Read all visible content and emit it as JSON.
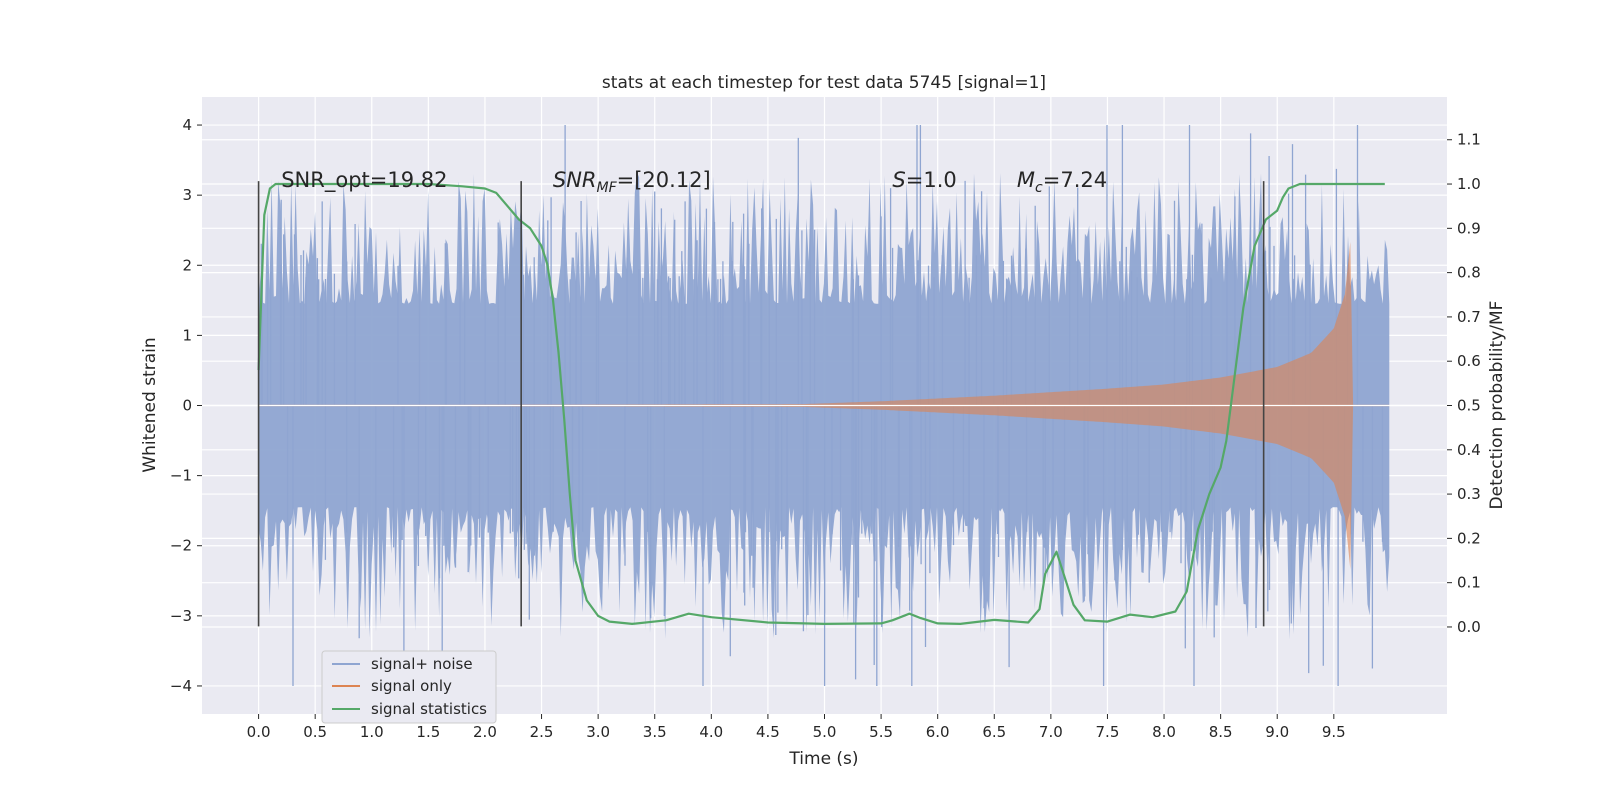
{
  "chart_data": {
    "type": "line",
    "title": "stats at each timestep for test data 5745 [signal=1]",
    "xlabel": "Time (s)",
    "ylabel_left": "Whitened strain",
    "ylabel_right": "Detection probability/MF",
    "xlim": [
      -0.5,
      10.5
    ],
    "ylim_left": [
      -4.4,
      4.4
    ],
    "ylim_right": [
      -0.1965,
      1.1965
    ],
    "x_ticks": [
      0.0,
      0.5,
      1.0,
      1.5,
      2.0,
      2.5,
      3.0,
      3.5,
      4.0,
      4.5,
      5.0,
      5.5,
      6.0,
      6.5,
      7.0,
      7.5,
      8.0,
      8.5,
      9.0,
      9.5
    ],
    "x_tick_labels": [
      "0.0",
      "0.5",
      "1.0",
      "1.5",
      "2.0",
      "2.5",
      "3.0",
      "3.5",
      "4.0",
      "4.5",
      "5.0",
      "5.5",
      "6.0",
      "6.5",
      "7.0",
      "7.5",
      "8.0",
      "8.5",
      "9.0",
      "9.5"
    ],
    "y_left_ticks": [
      4,
      3,
      2,
      1,
      0,
      -1,
      -2,
      -3,
      -4
    ],
    "y_left_tick_labels": [
      "4",
      "3",
      "2",
      "1",
      "0",
      "−1",
      "−2",
      "−3",
      "−4"
    ],
    "y_right_ticks": [
      1.1,
      1.0,
      0.9,
      0.8,
      0.7,
      0.6,
      0.5,
      0.4,
      0.3,
      0.2,
      0.1,
      0.0
    ],
    "y_right_tick_labels": [
      "1.1",
      "1.0",
      "0.9",
      "0.8",
      "0.7",
      "0.6",
      "0.5",
      "0.4",
      "0.3",
      "0.2",
      "0.1",
      "0.0"
    ],
    "grid": true,
    "legend_position": "lower-left",
    "series": [
      {
        "name": "signal+ noise",
        "color": "#8fa5d1",
        "axis": "left",
        "noise_band": {
          "x_start": 0.0,
          "x_end": 9.99,
          "core_amplitude": 1.3,
          "peak_max": 4.0,
          "peak_min": -4.0
        }
      },
      {
        "name": "signal only",
        "color": "#dd8452",
        "axis": "left",
        "envelope": {
          "x": [
            0.0,
            4.8,
            5.5,
            6.0,
            6.5,
            7.0,
            7.5,
            8.0,
            8.5,
            9.0,
            9.3,
            9.5,
            9.6,
            9.65,
            9.67
          ],
          "amplitude": [
            0.0,
            0.02,
            0.06,
            0.1,
            0.14,
            0.19,
            0.24,
            0.3,
            0.4,
            0.55,
            0.75,
            1.1,
            1.6,
            2.4,
            0.0
          ]
        }
      },
      {
        "name": "signal statistics",
        "color": "#55a868",
        "axis": "right",
        "x": [
          0.0,
          0.05,
          0.1,
          0.15,
          0.2,
          0.3,
          0.5,
          1.0,
          1.5,
          1.8,
          2.0,
          2.1,
          2.2,
          2.3,
          2.4,
          2.5,
          2.55,
          2.6,
          2.65,
          2.7,
          2.75,
          2.8,
          2.9,
          3.0,
          3.1,
          3.3,
          3.6,
          3.8,
          4.0,
          4.5,
          5.0,
          5.5,
          5.6,
          5.75,
          5.85,
          6.0,
          6.2,
          6.5,
          6.8,
          6.9,
          6.95,
          7.05,
          7.1,
          7.2,
          7.3,
          7.5,
          7.7,
          7.9,
          8.1,
          8.2,
          8.3,
          8.4,
          8.5,
          8.55,
          8.6,
          8.7,
          8.8,
          8.9,
          9.0,
          9.05,
          9.1,
          9.2,
          9.4,
          9.6,
          9.95
        ],
        "y": [
          0.58,
          0.93,
          0.99,
          1.0,
          1.0,
          1.0,
          1.0,
          1.0,
          1.0,
          0.995,
          0.99,
          0.98,
          0.95,
          0.92,
          0.9,
          0.86,
          0.82,
          0.74,
          0.62,
          0.47,
          0.3,
          0.15,
          0.06,
          0.025,
          0.012,
          0.007,
          0.015,
          0.03,
          0.022,
          0.01,
          0.007,
          0.008,
          0.015,
          0.03,
          0.02,
          0.008,
          0.007,
          0.016,
          0.01,
          0.04,
          0.12,
          0.17,
          0.13,
          0.05,
          0.015,
          0.012,
          0.028,
          0.022,
          0.035,
          0.08,
          0.22,
          0.3,
          0.36,
          0.42,
          0.52,
          0.72,
          0.86,
          0.92,
          0.94,
          0.97,
          0.99,
          1.0,
          1.0,
          1.0,
          1.0
        ]
      }
    ],
    "vertical_markers": [
      {
        "x": 0.0,
        "y_left_range": [
          -3.15,
          3.2
        ]
      },
      {
        "x": 2.32,
        "y_left_range": [
          -3.15,
          3.2
        ]
      },
      {
        "x": 8.88,
        "y_left_range": [
          -3.15,
          3.2
        ]
      }
    ],
    "annotations": [
      {
        "id": "snr-opt",
        "text": "SNR_opt=19.82",
        "x": 0.2,
        "y": 3.2
      },
      {
        "id": "snr-mf",
        "base": "SNR",
        "sub": "MF",
        "rest": "=[20.12]",
        "x": 2.6,
        "y": 3.2
      },
      {
        "id": "s-value",
        "base": "S",
        "rest": "=1.0",
        "x": 5.6,
        "y": 3.2
      },
      {
        "id": "mc-value",
        "base": "M",
        "sub": "c",
        "rest": "=7.24",
        "x": 6.7,
        "y": 3.2
      }
    ]
  }
}
